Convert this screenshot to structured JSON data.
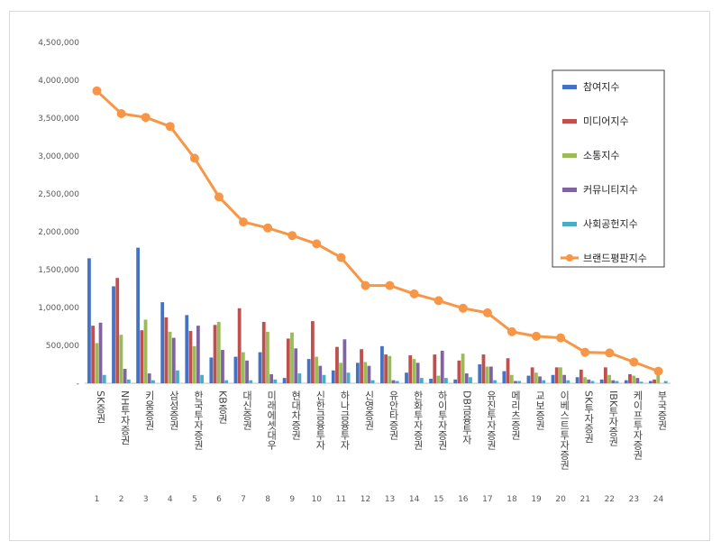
{
  "chart_data": {
    "type": "bar",
    "ylim": [
      0,
      4500000
    ],
    "yticks": [
      0,
      500000,
      1000000,
      1500000,
      2000000,
      2500000,
      3000000,
      3500000,
      4000000,
      4500000
    ],
    "ytick_labels": [
      "-",
      "500,000",
      "1,000,000",
      "1,500,000",
      "2,000,000",
      "2,500,000",
      "3,000,000",
      "3,500,000",
      "4,000,000",
      "4,500,000"
    ],
    "grid": false,
    "legend_position": "top-right",
    "categories": [
      "SK증권",
      "NH투자증권",
      "키움증권",
      "삼성증권",
      "한국투자증권",
      "KB증권",
      "대신증권",
      "미래에셋대우",
      "현대차증권",
      "신한금융투자",
      "하나금융투자",
      "신영증권",
      "유안타증권",
      "한화투자증권",
      "하이투자증권",
      "DB금융투자",
      "유진투자증권",
      "메리츠증권",
      "교보증권",
      "이베스트투자증권",
      "SK투자증권",
      "IBK투자증권",
      "케이프투자증권",
      "부국증권"
    ],
    "ranks": [
      "1",
      "2",
      "3",
      "4",
      "5",
      "6",
      "7",
      "8",
      "9",
      "10",
      "11",
      "12",
      "13",
      "14",
      "15",
      "16",
      "17",
      "18",
      "19",
      "20",
      "21",
      "22",
      "23",
      "24"
    ],
    "series": [
      {
        "name": "참여지수",
        "color": "#4472c4",
        "values": [
          1650000,
          1280000,
          1790000,
          1070000,
          900000,
          340000,
          350000,
          410000,
          70000,
          320000,
          170000,
          270000,
          490000,
          140000,
          60000,
          50000,
          250000,
          160000,
          100000,
          110000,
          80000,
          50000,
          40000,
          30000
        ]
      },
      {
        "name": "미디어지수",
        "color": "#c0504d",
        "values": [
          760000,
          1390000,
          700000,
          870000,
          690000,
          770000,
          990000,
          810000,
          590000,
          820000,
          480000,
          450000,
          380000,
          370000,
          380000,
          300000,
          380000,
          330000,
          210000,
          210000,
          180000,
          210000,
          120000,
          50000
        ]
      },
      {
        "name": "소통지수",
        "color": "#9bbb59",
        "values": [
          530000,
          640000,
          840000,
          680000,
          490000,
          810000,
          410000,
          680000,
          670000,
          350000,
          270000,
          280000,
          360000,
          320000,
          100000,
          390000,
          220000,
          110000,
          140000,
          210000,
          80000,
          110000,
          100000,
          140000
        ]
      },
      {
        "name": "커뮤니티지수",
        "color": "#8064a2",
        "values": [
          800000,
          190000,
          130000,
          600000,
          760000,
          440000,
          300000,
          120000,
          460000,
          230000,
          580000,
          230000,
          40000,
          270000,
          430000,
          130000,
          220000,
          30000,
          90000,
          110000,
          50000,
          40000,
          70000,
          0
        ]
      },
      {
        "name": "사회공헌지수",
        "color": "#4bacc6",
        "values": [
          110000,
          50000,
          40000,
          170000,
          110000,
          40000,
          40000,
          50000,
          130000,
          110000,
          140000,
          40000,
          30000,
          70000,
          70000,
          80000,
          40000,
          30000,
          40000,
          40000,
          30000,
          30000,
          20000,
          30000
        ]
      },
      {
        "name": "브랜드평판지수",
        "color": "#f79646",
        "type": "line",
        "values": [
          3860000,
          3560000,
          3510000,
          3390000,
          2970000,
          2460000,
          2130000,
          2050000,
          1950000,
          1840000,
          1660000,
          1290000,
          1290000,
          1180000,
          1090000,
          990000,
          930000,
          680000,
          620000,
          600000,
          410000,
          400000,
          280000,
          160000
        ]
      }
    ]
  }
}
